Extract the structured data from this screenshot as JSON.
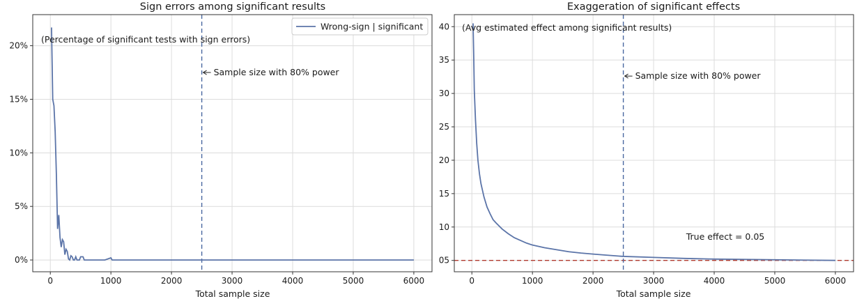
{
  "chart_data": [
    {
      "type": "line",
      "title": "Sign errors among significant results",
      "subtitle": "(Percentage of significant tests with sign errors)",
      "xlabel": "Total sample size",
      "ylabel": "",
      "xlim": [
        -290,
        6300
      ],
      "ylim": [
        -1.1,
        22.9
      ],
      "xticks": [
        0,
        1000,
        2000,
        3000,
        4000,
        5000,
        6000
      ],
      "xtick_labels": [
        "0",
        "1000",
        "2000",
        "3000",
        "4000",
        "5000",
        "6000"
      ],
      "yticks": [
        0,
        5,
        10,
        15,
        20
      ],
      "ytick_labels": [
        "0%",
        "5%",
        "10%",
        "15%",
        "20%"
      ],
      "grid": true,
      "legend": {
        "placement": "top-right",
        "entries": [
          "Wrong-sign | significant"
        ]
      },
      "series": [
        {
          "name": "Wrong-sign | significant",
          "color": "#5b74a8",
          "x": [
            20,
            40,
            60,
            80,
            100,
            120,
            140,
            160,
            180,
            200,
            220,
            240,
            260,
            280,
            300,
            320,
            340,
            360,
            380,
            400,
            420,
            440,
            460,
            480,
            500,
            520,
            540,
            560,
            580,
            600,
            650,
            700,
            800,
            900,
            1000,
            1020,
            1100,
            1500,
            2000,
            2500,
            3000,
            3500,
            4000,
            4500,
            5000,
            5500,
            6000
          ],
          "y": [
            21.7,
            15.0,
            14.4,
            12.0,
            8.0,
            2.9,
            4.2,
            2.1,
            1.2,
            1.9,
            1.7,
            0.5,
            1.0,
            0.8,
            0.1,
            0.0,
            0.4,
            0.3,
            0.0,
            0.0,
            0.3,
            0.0,
            0.0,
            0.0,
            0.3,
            0.3,
            0.3,
            0.0,
            0.0,
            0.0,
            0.0,
            0.0,
            0.0,
            0.0,
            0.2,
            0.0,
            0.0,
            0.0,
            0.0,
            0.0,
            0.0,
            0.0,
            0.0,
            0.0,
            0.0,
            0.0,
            0.0
          ]
        }
      ],
      "vline": {
        "x": 2500,
        "color": "#4a68a0"
      },
      "annotation": {
        "text": "Sample size with 80% power",
        "arrow_to_x": 2500,
        "y": 17.5
      }
    },
    {
      "type": "line",
      "title": "Exaggeration of significant effects",
      "subtitle": "(Avg estimated effect among significant results)",
      "xlabel": "Total sample size",
      "ylabel": "",
      "xlim": [
        -290,
        6300
      ],
      "ylim": [
        3.3,
        41.8
      ],
      "xticks": [
        0,
        1000,
        2000,
        3000,
        4000,
        5000,
        6000
      ],
      "xtick_labels": [
        "0",
        "1000",
        "2000",
        "3000",
        "4000",
        "5000",
        "6000"
      ],
      "yticks": [
        5,
        10,
        15,
        20,
        25,
        30,
        35,
        40
      ],
      "ytick_labels": [
        "05",
        "10",
        "15",
        "20",
        "25",
        "30",
        "35",
        "40"
      ],
      "grid": true,
      "series": [
        {
          "color": "#5b74a8",
          "x": [
            20,
            30,
            40,
            60,
            80,
            100,
            125,
            150,
            200,
            250,
            300,
            350,
            400,
            500,
            600,
            700,
            800,
            900,
            1000,
            1200,
            1400,
            1600,
            1800,
            2000,
            2200,
            2500,
            3000,
            3500,
            4000,
            4500,
            5000,
            5500,
            6000
          ],
          "y": [
            40.5,
            36.0,
            30.5,
            26.0,
            22.5,
            20.0,
            18.0,
            16.5,
            14.5,
            13.0,
            12.0,
            11.1,
            10.6,
            9.7,
            9.0,
            8.4,
            8.0,
            7.6,
            7.3,
            6.9,
            6.6,
            6.3,
            6.1,
            5.95,
            5.8,
            5.6,
            5.45,
            5.3,
            5.2,
            5.15,
            5.1,
            5.05,
            5.0
          ]
        }
      ],
      "hline": {
        "y": 5,
        "label": "True effect = 0.05",
        "color": "#b03a2e"
      },
      "vline": {
        "x": 2500,
        "color": "#4a68a0"
      },
      "annotation": {
        "text": "Sample size with 80% power",
        "arrow_to_x": 2500,
        "y": 32.6
      }
    }
  ]
}
